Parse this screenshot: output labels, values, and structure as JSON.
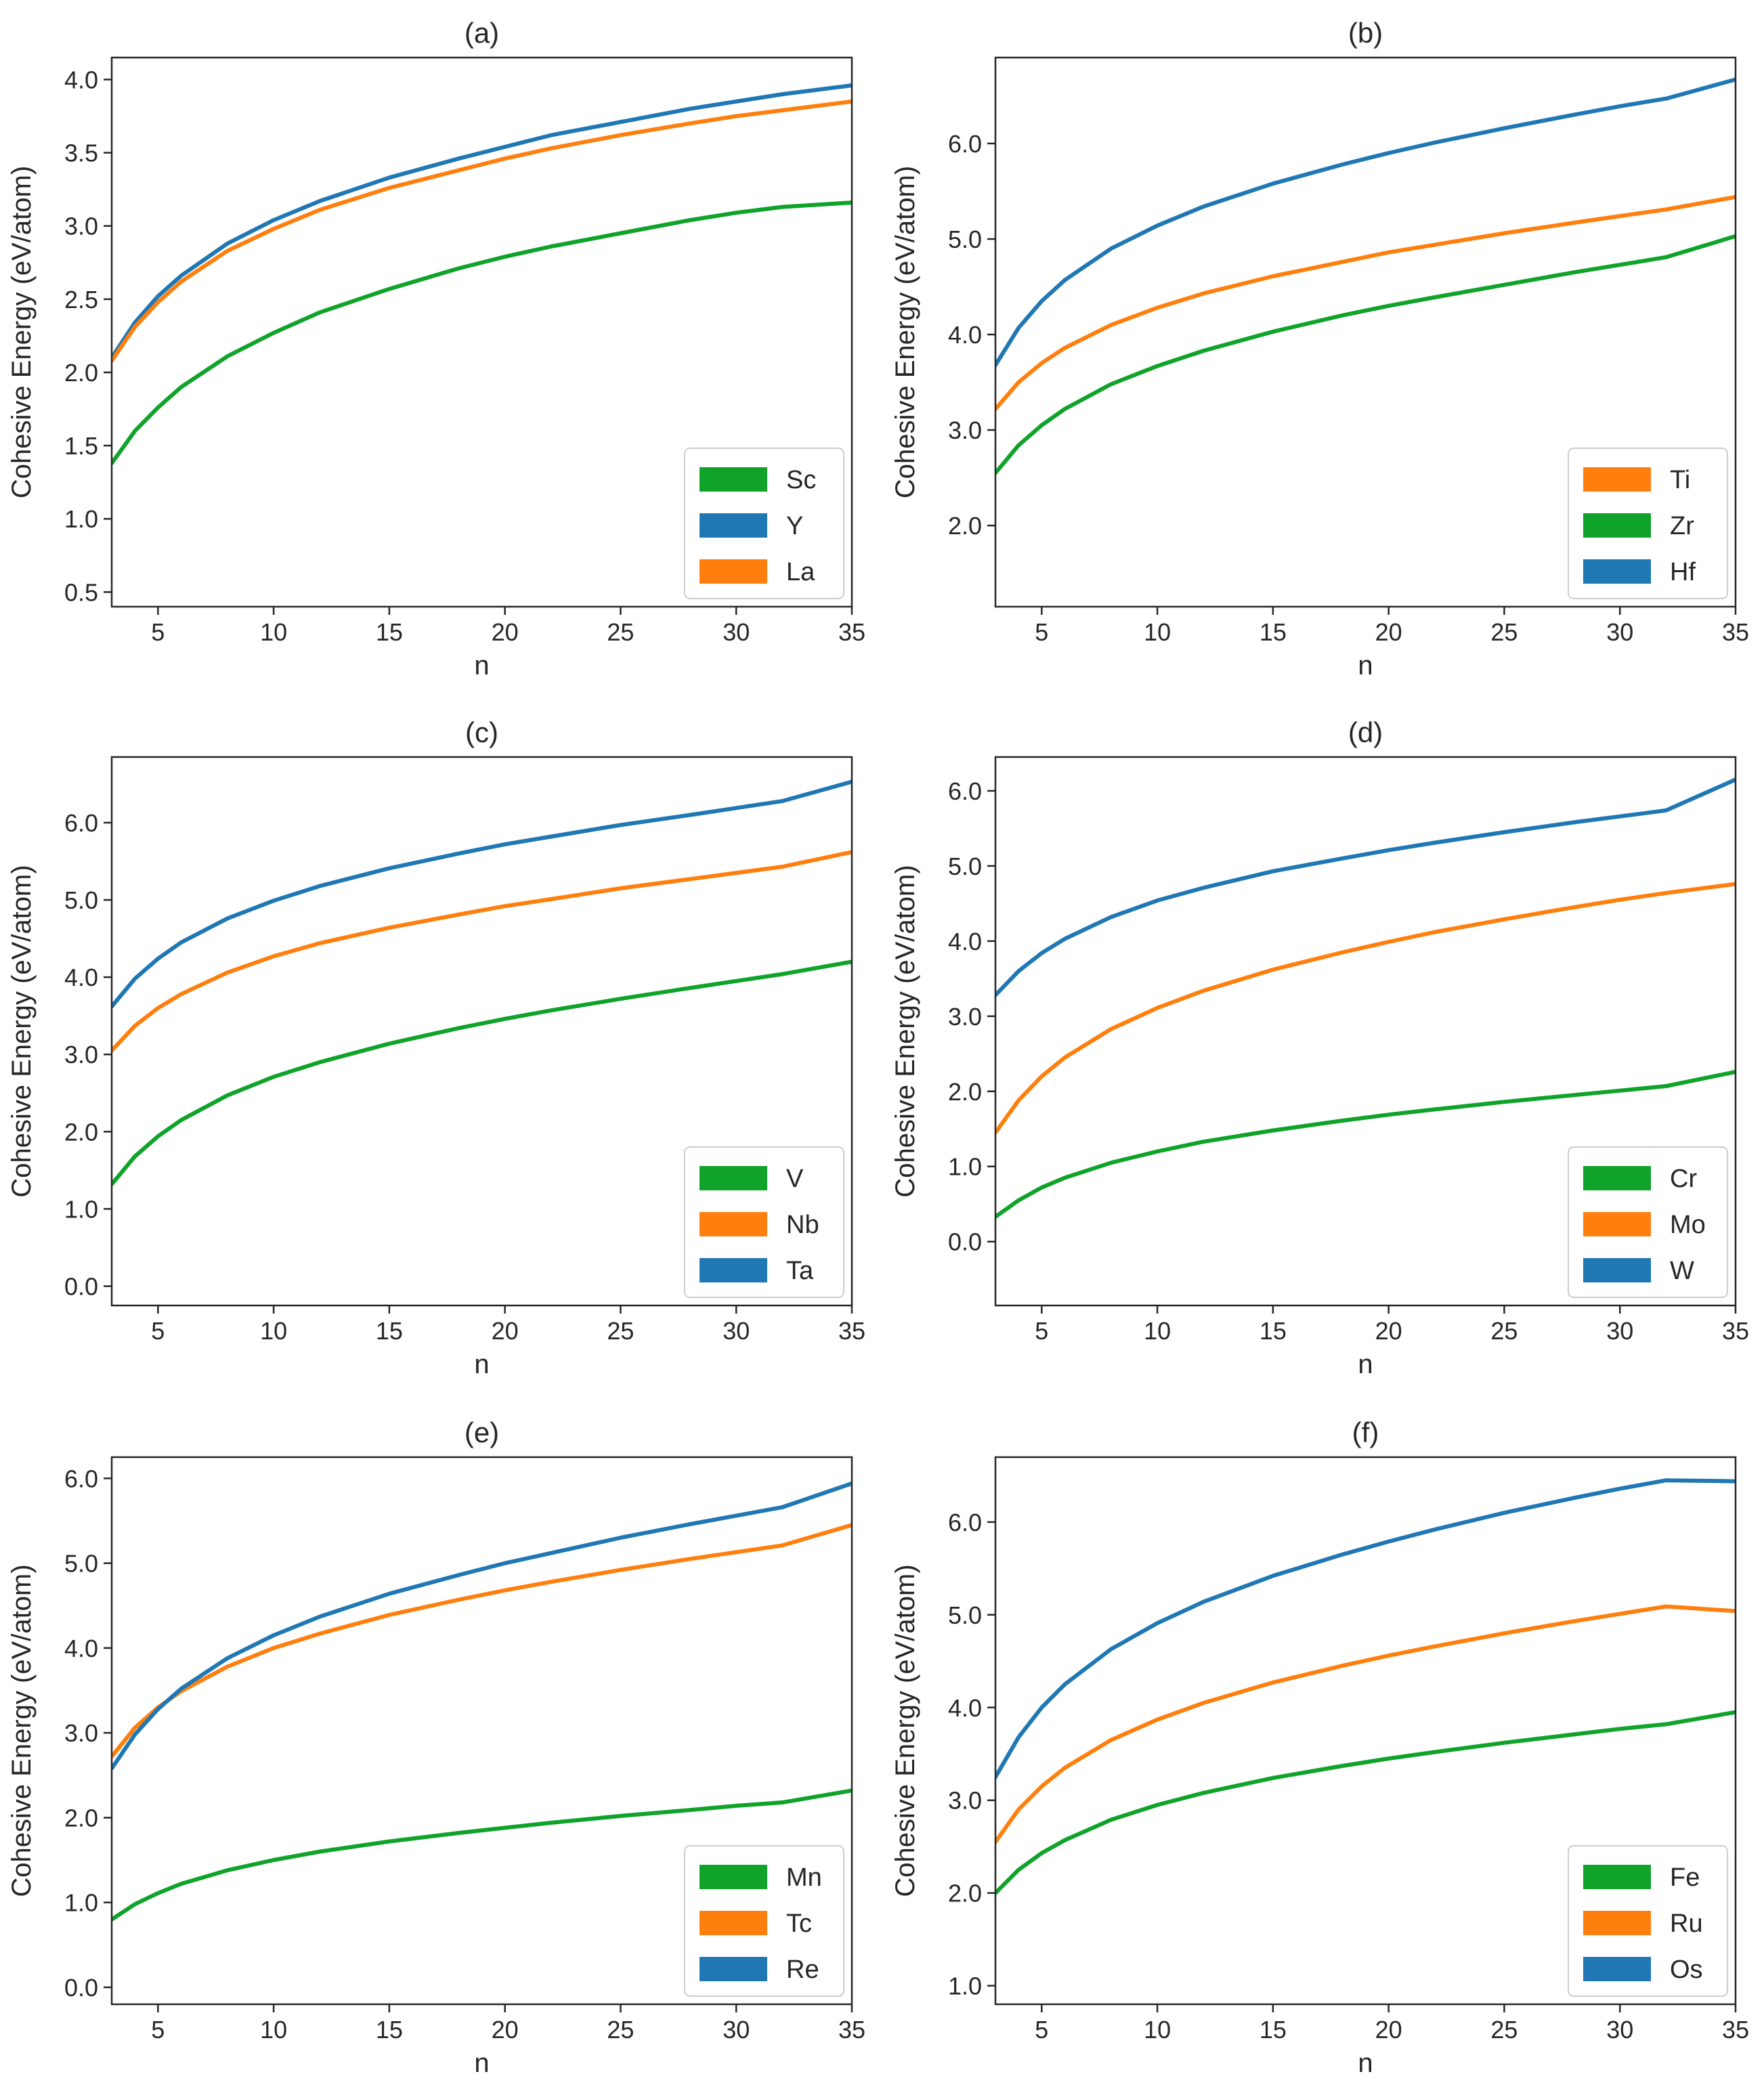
{
  "chart_data": [
    {
      "type": "line",
      "title": "(a)",
      "xlabel": "n",
      "ylabel": "Cohesive Energy (eV/atom)",
      "xlim": [
        3,
        35
      ],
      "ylim": [
        0.4,
        4.15
      ],
      "xticks": [
        5,
        10,
        15,
        20,
        25,
        30,
        35
      ],
      "xtick_labels": [
        "5",
        "10",
        "15",
        "20",
        "25",
        "30",
        "35"
      ],
      "yticks": [
        0.5,
        1.0,
        1.5,
        2.0,
        2.5,
        3.0,
        3.5,
        4.0
      ],
      "ytick_labels": [
        "0.5",
        "1.0",
        "1.5",
        "2.0",
        "2.5",
        "3.0",
        "3.5",
        "4.0"
      ],
      "legend_position": "lower-right",
      "series": [
        {
          "name": "Sc",
          "color": "#0fa32a",
          "x": [
            3,
            4,
            5,
            6,
            8,
            10,
            12,
            15,
            18,
            20,
            22,
            25,
            28,
            30,
            32,
            35
          ],
          "y": [
            1.38,
            1.6,
            1.76,
            1.9,
            2.11,
            2.27,
            2.41,
            2.57,
            2.71,
            2.79,
            2.86,
            2.95,
            3.04,
            3.09,
            3.13,
            3.16
          ]
        },
        {
          "name": "Y",
          "color": "#1f77b4",
          "x": [
            3,
            4,
            5,
            6,
            8,
            10,
            12,
            15,
            18,
            20,
            22,
            25,
            28,
            30,
            32,
            35
          ],
          "y": [
            2.1,
            2.34,
            2.52,
            2.66,
            2.88,
            3.04,
            3.17,
            3.33,
            3.46,
            3.54,
            3.62,
            3.71,
            3.8,
            3.85,
            3.9,
            3.96
          ]
        },
        {
          "name": "La",
          "color": "#ff7f0e",
          "x": [
            3,
            4,
            5,
            6,
            8,
            10,
            12,
            15,
            18,
            20,
            22,
            25,
            28,
            30,
            32,
            35
          ],
          "y": [
            2.08,
            2.31,
            2.48,
            2.62,
            2.83,
            2.98,
            3.11,
            3.26,
            3.38,
            3.46,
            3.53,
            3.62,
            3.7,
            3.75,
            3.79,
            3.85
          ]
        }
      ]
    },
    {
      "type": "line",
      "title": "(b)",
      "xlabel": "n",
      "ylabel": "Cohesive Energy (eV/atom)",
      "xlim": [
        3,
        35
      ],
      "ylim": [
        1.15,
        6.9
      ],
      "xticks": [
        5,
        10,
        15,
        20,
        25,
        30,
        35
      ],
      "xtick_labels": [
        "5",
        "10",
        "15",
        "20",
        "25",
        "30",
        "35"
      ],
      "yticks": [
        2.0,
        3.0,
        4.0,
        5.0,
        6.0
      ],
      "ytick_labels": [
        "2.0",
        "3.0",
        "4.0",
        "5.0",
        "6.0"
      ],
      "legend_position": "lower-right",
      "series": [
        {
          "name": "Ti",
          "color": "#ff7f0e",
          "x": [
            3,
            4,
            5,
            6,
            8,
            10,
            12,
            15,
            18,
            20,
            22,
            25,
            28,
            30,
            32,
            35
          ],
          "y": [
            3.22,
            3.5,
            3.7,
            3.86,
            4.1,
            4.28,
            4.43,
            4.61,
            4.76,
            4.86,
            4.94,
            5.06,
            5.17,
            5.24,
            5.31,
            5.44
          ]
        },
        {
          "name": "Zr",
          "color": "#0fa32a",
          "x": [
            3,
            4,
            5,
            6,
            8,
            10,
            12,
            15,
            18,
            20,
            22,
            25,
            28,
            30,
            32,
            35
          ],
          "y": [
            2.55,
            2.84,
            3.05,
            3.22,
            3.48,
            3.67,
            3.83,
            4.03,
            4.2,
            4.3,
            4.39,
            4.52,
            4.65,
            4.73,
            4.81,
            5.03
          ]
        },
        {
          "name": "Hf",
          "color": "#1f77b4",
          "x": [
            3,
            4,
            5,
            6,
            8,
            10,
            12,
            15,
            18,
            20,
            22,
            25,
            28,
            30,
            32,
            35
          ],
          "y": [
            3.68,
            4.07,
            4.35,
            4.57,
            4.9,
            5.14,
            5.34,
            5.58,
            5.78,
            5.9,
            6.01,
            6.16,
            6.3,
            6.39,
            6.47,
            6.67
          ]
        }
      ]
    },
    {
      "type": "line",
      "title": "(c)",
      "xlabel": "n",
      "ylabel": "Cohesive Energy (eV/atom)",
      "xlim": [
        3,
        35
      ],
      "ylim": [
        -0.25,
        6.85
      ],
      "xticks": [
        5,
        10,
        15,
        20,
        25,
        30,
        35
      ],
      "xtick_labels": [
        "5",
        "10",
        "15",
        "20",
        "25",
        "30",
        "35"
      ],
      "yticks": [
        0.0,
        1.0,
        2.0,
        3.0,
        4.0,
        5.0,
        6.0
      ],
      "ytick_labels": [
        "0.0",
        "1.0",
        "2.0",
        "3.0",
        "4.0",
        "5.0",
        "6.0"
      ],
      "legend_position": "lower-right",
      "series": [
        {
          "name": "V",
          "color": "#0fa32a",
          "x": [
            3,
            4,
            5,
            6,
            8,
            10,
            12,
            15,
            18,
            20,
            22,
            25,
            28,
            30,
            32,
            35
          ],
          "y": [
            1.32,
            1.68,
            1.94,
            2.15,
            2.47,
            2.71,
            2.9,
            3.14,
            3.34,
            3.46,
            3.57,
            3.72,
            3.86,
            3.95,
            4.04,
            4.2
          ]
        },
        {
          "name": "Nb",
          "color": "#ff7f0e",
          "x": [
            3,
            4,
            5,
            6,
            8,
            10,
            12,
            15,
            18,
            20,
            22,
            25,
            28,
            30,
            32,
            35
          ],
          "y": [
            3.05,
            3.37,
            3.6,
            3.78,
            4.06,
            4.27,
            4.44,
            4.64,
            4.81,
            4.92,
            5.01,
            5.15,
            5.27,
            5.35,
            5.43,
            5.62
          ]
        },
        {
          "name": "Ta",
          "color": "#1f77b4",
          "x": [
            3,
            4,
            5,
            6,
            8,
            10,
            12,
            15,
            18,
            20,
            22,
            25,
            28,
            30,
            32,
            35
          ],
          "y": [
            3.62,
            3.98,
            4.24,
            4.45,
            4.76,
            4.99,
            5.18,
            5.41,
            5.6,
            5.72,
            5.82,
            5.97,
            6.1,
            6.19,
            6.28,
            6.53
          ]
        }
      ]
    },
    {
      "type": "line",
      "title": "(d)",
      "xlabel": "n",
      "ylabel": "Cohesive Energy (eV/atom)",
      "xlim": [
        3,
        35
      ],
      "ylim": [
        -0.85,
        6.45
      ],
      "xticks": [
        5,
        10,
        15,
        20,
        25,
        30,
        35
      ],
      "xtick_labels": [
        "5",
        "10",
        "15",
        "20",
        "25",
        "30",
        "35"
      ],
      "yticks": [
        0.0,
        1.0,
        2.0,
        3.0,
        4.0,
        5.0,
        6.0
      ],
      "ytick_labels": [
        "0.0",
        "1.0",
        "2.0",
        "3.0",
        "4.0",
        "5.0",
        "6.0"
      ],
      "legend_position": "lower-right",
      "series": [
        {
          "name": "Cr",
          "color": "#0fa32a",
          "x": [
            3,
            4,
            5,
            6,
            8,
            10,
            12,
            15,
            18,
            20,
            22,
            25,
            28,
            30,
            32,
            35
          ],
          "y": [
            0.33,
            0.55,
            0.72,
            0.85,
            1.05,
            1.2,
            1.33,
            1.48,
            1.61,
            1.69,
            1.76,
            1.86,
            1.95,
            2.01,
            2.07,
            2.26
          ]
        },
        {
          "name": "Mo",
          "color": "#ff7f0e",
          "x": [
            3,
            4,
            5,
            6,
            8,
            10,
            12,
            15,
            18,
            20,
            22,
            25,
            28,
            30,
            32,
            35
          ],
          "y": [
            1.45,
            1.88,
            2.2,
            2.45,
            2.83,
            3.11,
            3.34,
            3.62,
            3.85,
            3.99,
            4.12,
            4.29,
            4.45,
            4.55,
            4.64,
            4.76
          ]
        },
        {
          "name": "W",
          "color": "#1f77b4",
          "x": [
            3,
            4,
            5,
            6,
            8,
            10,
            12,
            15,
            18,
            20,
            22,
            25,
            28,
            30,
            32,
            35
          ],
          "y": [
            3.28,
            3.6,
            3.84,
            4.03,
            4.32,
            4.54,
            4.71,
            4.93,
            5.1,
            5.21,
            5.31,
            5.45,
            5.58,
            5.66,
            5.74,
            6.15
          ]
        }
      ]
    },
    {
      "type": "line",
      "title": "(e)",
      "xlabel": "n",
      "ylabel": "Cohesive Energy (eV/atom)",
      "xlim": [
        3,
        35
      ],
      "ylim": [
        -0.2,
        6.25
      ],
      "xticks": [
        5,
        10,
        15,
        20,
        25,
        30,
        35
      ],
      "xtick_labels": [
        "5",
        "10",
        "15",
        "20",
        "25",
        "30",
        "35"
      ],
      "yticks": [
        0.0,
        1.0,
        2.0,
        3.0,
        4.0,
        5.0,
        6.0
      ],
      "ytick_labels": [
        "0.0",
        "1.0",
        "2.0",
        "3.0",
        "4.0",
        "5.0",
        "6.0"
      ],
      "legend_position": "lower-right",
      "series": [
        {
          "name": "Mn",
          "color": "#0fa32a",
          "x": [
            3,
            4,
            5,
            6,
            8,
            10,
            12,
            15,
            18,
            20,
            22,
            25,
            28,
            30,
            32,
            35
          ],
          "y": [
            0.8,
            0.98,
            1.11,
            1.22,
            1.38,
            1.5,
            1.6,
            1.72,
            1.82,
            1.88,
            1.94,
            2.02,
            2.09,
            2.14,
            2.18,
            2.32
          ]
        },
        {
          "name": "Tc",
          "color": "#ff7f0e",
          "x": [
            3,
            4,
            5,
            6,
            8,
            10,
            12,
            15,
            18,
            20,
            22,
            25,
            28,
            30,
            32,
            35
          ],
          "y": [
            2.72,
            3.06,
            3.3,
            3.49,
            3.78,
            4.0,
            4.17,
            4.39,
            4.57,
            4.68,
            4.78,
            4.92,
            5.05,
            5.13,
            5.21,
            5.45
          ]
        },
        {
          "name": "Re",
          "color": "#1f77b4",
          "x": [
            3,
            4,
            5,
            6,
            8,
            10,
            12,
            15,
            18,
            20,
            22,
            25,
            28,
            30,
            32,
            35
          ],
          "y": [
            2.58,
            2.98,
            3.28,
            3.52,
            3.88,
            4.15,
            4.37,
            4.64,
            4.86,
            5.0,
            5.12,
            5.3,
            5.46,
            5.56,
            5.66,
            5.94
          ]
        }
      ]
    },
    {
      "type": "line",
      "title": "(f)",
      "xlabel": "n",
      "ylabel": "Cohesive Energy (eV/atom)",
      "xlim": [
        3,
        35
      ],
      "ylim": [
        0.8,
        6.7
      ],
      "xticks": [
        5,
        10,
        15,
        20,
        25,
        30,
        35
      ],
      "xtick_labels": [
        "5",
        "10",
        "15",
        "20",
        "25",
        "30",
        "35"
      ],
      "yticks": [
        1.0,
        2.0,
        3.0,
        4.0,
        5.0,
        6.0
      ],
      "ytick_labels": [
        "1.0",
        "2.0",
        "3.0",
        "4.0",
        "5.0",
        "6.0"
      ],
      "legend_position": "lower-right",
      "series": [
        {
          "name": "Fe",
          "color": "#0fa32a",
          "x": [
            3,
            4,
            5,
            6,
            8,
            10,
            12,
            15,
            18,
            20,
            22,
            25,
            28,
            30,
            32,
            35
          ],
          "y": [
            2.0,
            2.25,
            2.43,
            2.57,
            2.79,
            2.95,
            3.08,
            3.24,
            3.37,
            3.45,
            3.52,
            3.62,
            3.71,
            3.77,
            3.82,
            3.95
          ]
        },
        {
          "name": "Ru",
          "color": "#ff7f0e",
          "x": [
            3,
            4,
            5,
            6,
            8,
            10,
            12,
            15,
            18,
            20,
            22,
            25,
            28,
            30,
            32,
            35
          ],
          "y": [
            2.55,
            2.9,
            3.15,
            3.35,
            3.65,
            3.87,
            4.05,
            4.27,
            4.45,
            4.56,
            4.66,
            4.8,
            4.93,
            5.01,
            5.09,
            5.04
          ]
        },
        {
          "name": "Os",
          "color": "#1f77b4",
          "x": [
            3,
            4,
            5,
            6,
            8,
            10,
            12,
            15,
            18,
            20,
            22,
            25,
            28,
            30,
            32,
            35
          ],
          "y": [
            3.25,
            3.68,
            4.0,
            4.25,
            4.63,
            4.91,
            5.14,
            5.42,
            5.65,
            5.79,
            5.92,
            6.1,
            6.26,
            6.36,
            6.45,
            6.44
          ]
        }
      ]
    }
  ]
}
